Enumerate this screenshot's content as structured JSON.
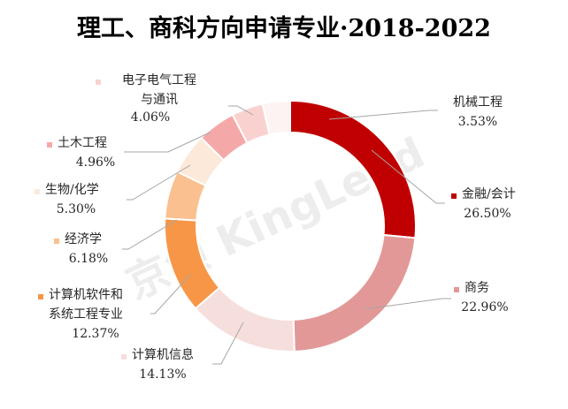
{
  "chart_data": {
    "type": "pie",
    "donut": true,
    "title": "理工、商科方向申请专业·2018-2022",
    "watermark": "京领 KingLead",
    "legend": "data labels beside each slice with leader lines",
    "slices": [
      {
        "label": [
          "金融/会计"
        ],
        "value_text": "26.50%",
        "value": 26.5,
        "color": "#c00000"
      },
      {
        "label": [
          "商务"
        ],
        "value_text": "22.96%",
        "value": 22.96,
        "color": "#e39898"
      },
      {
        "label": [
          "计算机信息"
        ],
        "value_text": "14.13%",
        "value": 14.13,
        "color": "#f6dedc"
      },
      {
        "label": [
          "计算机软件和",
          "系统工程专业"
        ],
        "value_text": "12.37%",
        "value": 12.37,
        "color": "#f79646"
      },
      {
        "label": [
          "经济学"
        ],
        "value_text": "6.18%",
        "value": 6.18,
        "color": "#fac090"
      },
      {
        "label": [
          "生物/化学"
        ],
        "value_text": "5.30%",
        "value": 5.3,
        "color": "#fde9d9"
      },
      {
        "label": [
          "土木工程"
        ],
        "value_text": "4.96%",
        "value": 4.96,
        "color": "#f4a9a8"
      },
      {
        "label": [
          "电子电气工程",
          "与通讯"
        ],
        "value_text": "4.06%",
        "value": 4.06,
        "color": "#f9d2d0"
      },
      {
        "label": [
          "机械工程"
        ],
        "value_text": "3.53%",
        "value": 3.53,
        "color": "#fdf3f2"
      }
    ]
  }
}
